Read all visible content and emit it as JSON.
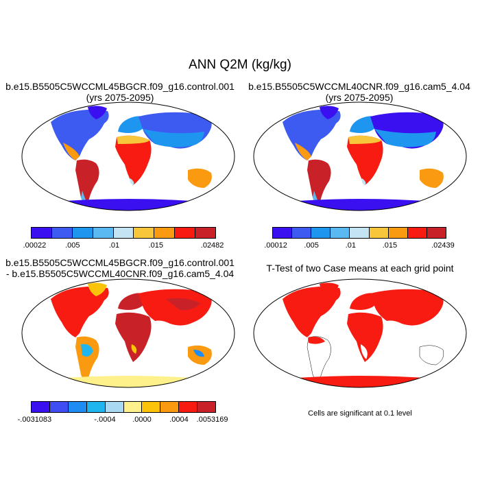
{
  "title": "ANN Q2M (kg/kg)",
  "panels": [
    {
      "title_line1": "b.e15.B5505C5WCCML45BGCR.f09_g16.control.001",
      "title_line2": "(yrs 2075-2095)",
      "colorbar": {
        "colors": [
          "#3a10f0",
          "#3d5bf0",
          "#1e96f0",
          "#5ab9f0",
          "#c4e4f4",
          "#f8c63a",
          "#f99a10",
          "#f71b12",
          "#c82228"
        ],
        "labels": [
          ".00022",
          ".005",
          ".01",
          ".015",
          ".02482"
        ]
      }
    },
    {
      "title_line1": "b.e15.B5505C5WCCML40CNR.f09_g16.cam5_4.04",
      "title_line2": "(yrs 2075-2095)",
      "colorbar": {
        "colors": [
          "#3a10f0",
          "#3d5bf0",
          "#1e96f0",
          "#5ab9f0",
          "#c4e4f4",
          "#f8c63a",
          "#f99a10",
          "#f71b12",
          "#c82228"
        ],
        "labels": [
          ".00012",
          ".005",
          ".01",
          ".015",
          ".02439"
        ]
      }
    },
    {
      "title_line1": "b.e15.B5505C5WCCML45BGCR.f09_g16.control.001",
      "title_line2": "- b.e15.B5505C5WCCML40CNR.f09_g16.cam5_4.04",
      "colorbar": {
        "colors": [
          "#3a10f0",
          "#3f4ef2",
          "#1f8cf4",
          "#1fb6f0",
          "#a8d8f2",
          "#fef08a",
          "#fbc40a",
          "#f99a10",
          "#f71b12",
          "#c82228"
        ],
        "labels": [
          "-.0031083",
          "-.0004",
          ".0000",
          ".0004",
          ".0053169"
        ]
      }
    },
    {
      "title_line1": "T-Test of two Case means at each grid point",
      "footnote": "Cells are significant at 0.1 level"
    }
  ]
}
